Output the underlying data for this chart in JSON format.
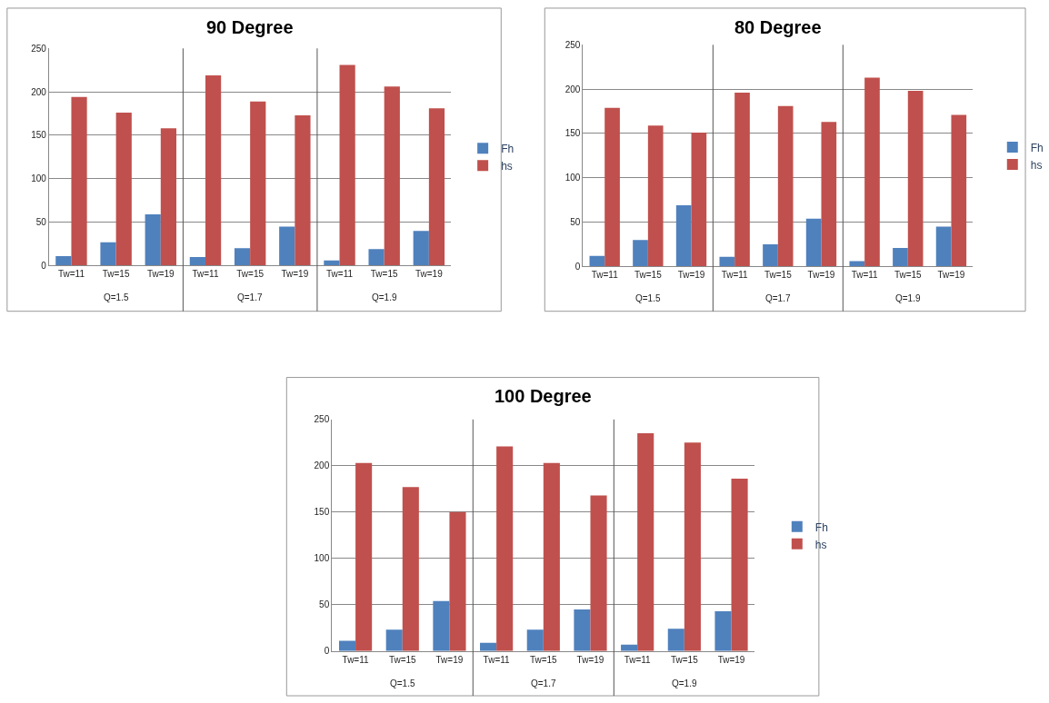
{
  "chart_data": [
    {
      "type": "bar",
      "title": "90 Degree",
      "categories": [
        "Tw=11",
        "Tw=15",
        "Tw=19",
        "Tw=11",
        "Tw=15",
        "Tw=19",
        "Tw=11",
        "Tw=15",
        "Tw=19"
      ],
      "annotations": [
        "Q=1.5",
        "Q=1.7",
        "Q=1.9"
      ],
      "series": [
        {
          "name": "Fh",
          "color": "#4f81bd",
          "values": [
            11,
            27,
            59,
            10,
            20,
            45,
            6,
            19,
            40
          ]
        },
        {
          "name": "hs",
          "color": "#c0504d",
          "values": [
            194,
            176,
            158,
            219,
            189,
            173,
            231,
            206,
            181
          ]
        }
      ],
      "ylim": [
        0,
        250
      ],
      "yticks": [
        0,
        50,
        100,
        150,
        200,
        250
      ],
      "grid": "y",
      "legend": "right"
    },
    {
      "type": "bar",
      "title": "80 Degree",
      "categories": [
        "Tw=11",
        "Tw=15",
        "Tw=19",
        "Tw=11",
        "Tw=15",
        "Tw=19",
        "Tw=11",
        "Tw=15",
        "Tw=19"
      ],
      "annotations": [
        "Q=1.5",
        "Q=1.7",
        "Q=1.9"
      ],
      "series": [
        {
          "name": "Fh",
          "color": "#4f81bd",
          "values": [
            12,
            30,
            69,
            11,
            25,
            54,
            6,
            21,
            45
          ]
        },
        {
          "name": "hs",
          "color": "#c0504d",
          "values": [
            179,
            159,
            151,
            196,
            181,
            163,
            213,
            198,
            171
          ]
        }
      ],
      "ylim": [
        0,
        250
      ],
      "yticks": [
        0,
        50,
        100,
        150,
        200,
        250
      ],
      "grid": "y",
      "legend": "right"
    },
    {
      "type": "bar",
      "title": "100 Degree",
      "categories": [
        "Tw=11",
        "Tw=15",
        "Tw=19",
        "Tw=11",
        "Tw=15",
        "Tw=19",
        "Tw=11",
        "Tw=15",
        "Tw=19"
      ],
      "annotations": [
        "Q=1.5",
        "Q=1.7",
        "Q=1.9"
      ],
      "series": [
        {
          "name": "Fh",
          "color": "#4f81bd",
          "values": [
            11,
            23,
            54,
            9,
            23,
            45,
            7,
            24,
            43
          ]
        },
        {
          "name": "hs",
          "color": "#c0504d",
          "values": [
            203,
            177,
            150,
            221,
            203,
            168,
            235,
            225,
            186
          ]
        }
      ],
      "ylim": [
        0,
        250
      ],
      "yticks": [
        0,
        50,
        100,
        150,
        200,
        250
      ],
      "grid": "y",
      "legend": "right"
    }
  ]
}
